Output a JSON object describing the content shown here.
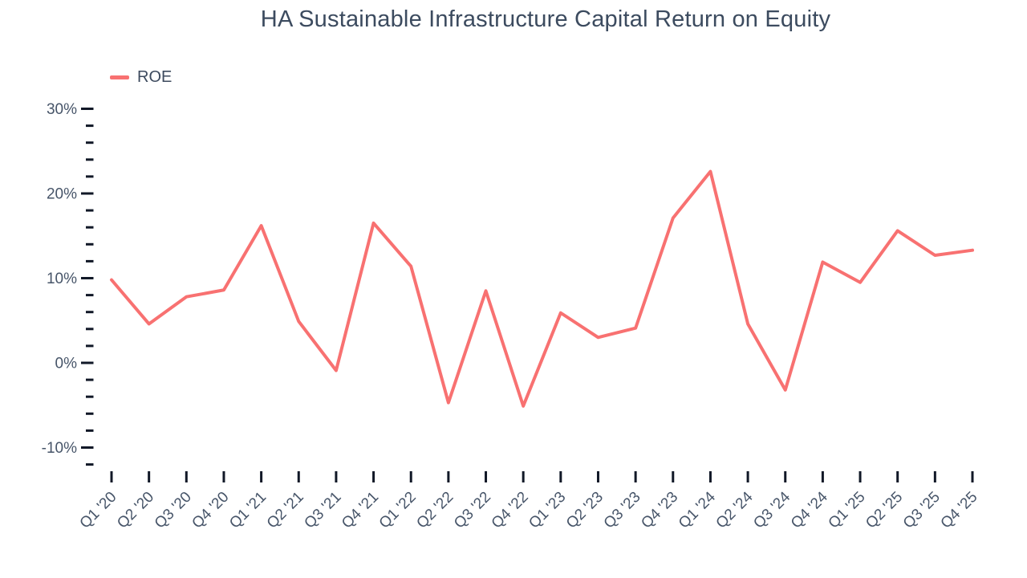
{
  "chart_data": {
    "type": "line",
    "title": "HA Sustainable Infrastructure Capital Return on Equity",
    "categories": [
      "Q1 '20",
      "Q2 '20",
      "Q3 '20",
      "Q4 '20",
      "Q1 '21",
      "Q2 '21",
      "Q3 '21",
      "Q4 '21",
      "Q1 '22",
      "Q2 '22",
      "Q3 '22",
      "Q4 '22",
      "Q1 '23",
      "Q2 '23",
      "Q3 '23",
      "Q4 '23",
      "Q1 '24",
      "Q2 '24",
      "Q3 '24",
      "Q4 '24",
      "Q1 '25",
      "Q2 '25",
      "Q3 '25",
      "Q4 '25"
    ],
    "series": [
      {
        "name": "ROE",
        "color": "#f87171",
        "values": [
          9.8,
          4.6,
          7.8,
          8.6,
          16.2,
          4.9,
          -0.9,
          16.5,
          11.4,
          -4.7,
          8.5,
          -5.1,
          5.9,
          3.0,
          4.1,
          17.1,
          22.6,
          4.6,
          -3.2,
          11.9,
          9.5,
          15.6,
          12.7,
          13.3
        ]
      }
    ],
    "y_axis": {
      "unit": "%",
      "major_ticks": [
        30,
        20,
        10,
        0,
        -10
      ],
      "minor_tick_step": 2,
      "tick_max": 30,
      "tick_min": -12
    },
    "x_axis": {
      "label_rotation_deg": -45
    },
    "legend": {
      "position": "top-left"
    },
    "grid": false,
    "colors": {
      "line": "#f87171",
      "title_text": "#3c4b5f",
      "axis_label_text": "#475569",
      "tick_mark": "#111827"
    }
  }
}
